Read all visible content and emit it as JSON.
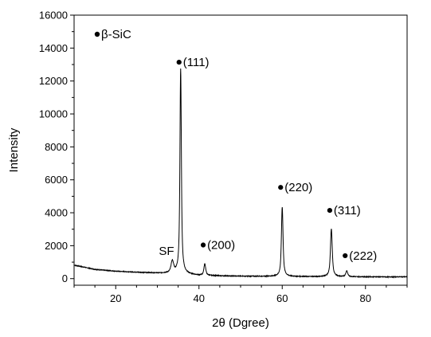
{
  "chart_data": {
    "type": "line",
    "title": "",
    "xlabel": "2θ (Dgree)",
    "ylabel": "Intensity",
    "xlim": [
      10,
      90
    ],
    "ylim": [
      -400,
      16000
    ],
    "x_ticks": [
      20,
      40,
      60,
      80
    ],
    "y_ticks": [
      0,
      2000,
      4000,
      6000,
      8000,
      10000,
      12000,
      14000,
      16000
    ],
    "x_minor_step": 5,
    "y_minor_step": 1000,
    "grid": false,
    "legend": {
      "placement": "top-left",
      "entries": [
        {
          "marker": "filled-circle",
          "label": "β-SiC"
        }
      ]
    },
    "line_color": "#000000",
    "series": [
      {
        "name": "",
        "baseline": [
          [
            10,
            820
          ],
          [
            15,
            560
          ],
          [
            20,
            450
          ],
          [
            25,
            390
          ],
          [
            30,
            340
          ],
          [
            33,
            330
          ],
          [
            35,
            360
          ],
          [
            38,
            260
          ],
          [
            40,
            200
          ],
          [
            45,
            170
          ],
          [
            50,
            150
          ],
          [
            55,
            140
          ],
          [
            60,
            140
          ],
          [
            65,
            125
          ],
          [
            70,
            120
          ],
          [
            75,
            115
          ],
          [
            80,
            110
          ],
          [
            85,
            105
          ],
          [
            90,
            110
          ]
        ],
        "peaks": [
          {
            "x": 33.6,
            "height": 700,
            "width": 0.4
          },
          {
            "x": 35.6,
            "height": 12400,
            "width": 0.22
          },
          {
            "x": 41.4,
            "height": 700,
            "width": 0.28
          },
          {
            "x": 60.0,
            "height": 4200,
            "width": 0.25
          },
          {
            "x": 71.8,
            "height": 2900,
            "width": 0.28
          },
          {
            "x": 75.5,
            "height": 350,
            "width": 0.3
          }
        ]
      }
    ],
    "annotations": [
      {
        "label": "(111)",
        "x": 35.6,
        "y": 12900,
        "marker": true
      },
      {
        "label": "(200)",
        "x": 41.4,
        "y": 1800,
        "marker": true
      },
      {
        "label": "(220)",
        "x": 60.0,
        "y": 5300,
        "marker": true
      },
      {
        "label": "(311)",
        "x": 71.8,
        "y": 3900,
        "marker": true
      },
      {
        "label": "(222)",
        "x": 75.5,
        "y": 1150,
        "marker": true
      },
      {
        "label": "SF",
        "x": 32.2,
        "y": 1450,
        "marker": false
      }
    ]
  }
}
